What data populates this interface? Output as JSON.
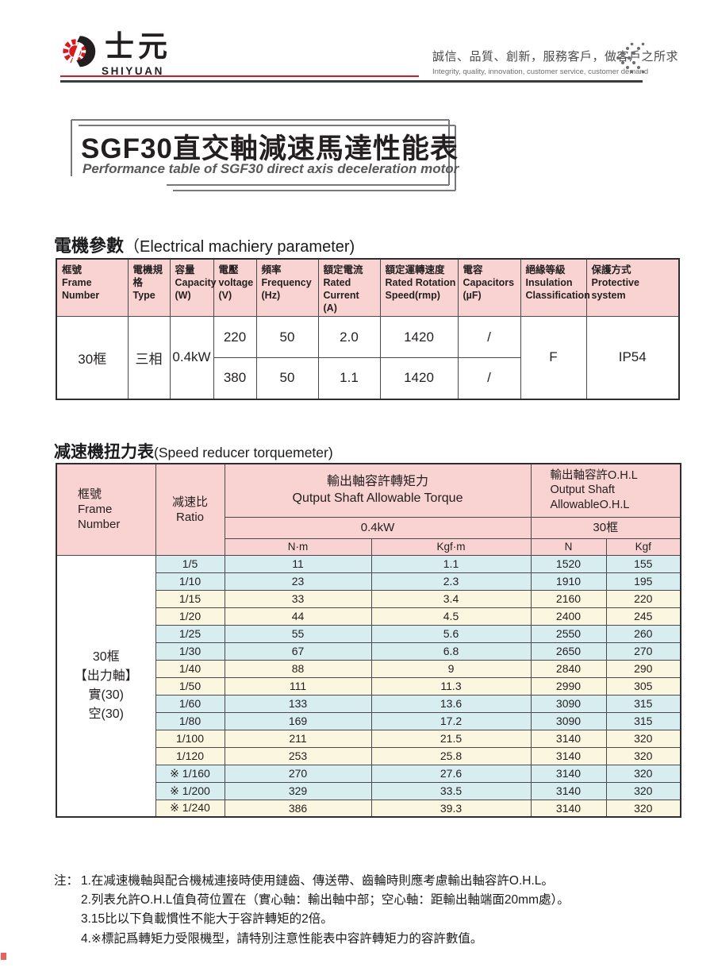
{
  "colors": {
    "accent_red": "#d71920",
    "header_pink": "#f8d3d1",
    "cell_blue": "#d7edf0",
    "cell_yellow": "#faf6df",
    "rule_dark": "#3b3b3d"
  },
  "header": {
    "logo_cn": "士元",
    "logo_en": "SHIYUAN",
    "slogan_cn": "誠信、品質、創新，服務客戶，做客戶之所求",
    "slogan_en": "Integrity, quality, innovation, customer service, customer demand"
  },
  "title": {
    "main": "SGF30直交軸減速馬達性能表",
    "subtitle": "Performance table of SGF30 direct axis deceleration motor"
  },
  "motor": {
    "heading_cn": "電機參數",
    "heading_en": "（Electrical machiery parameter)",
    "columns": [
      "框號\nFrame\nNumber",
      "電機規格\nType",
      "容量\nCapacity\n(W)",
      "電壓\nvoltage\n(V)",
      "頻率\nFrequency\n(Hz)",
      "額定電流\nRated\nCurrent\n(A)",
      "額定運轉速度\nRated Rotation\nSpeed(rmp)",
      "電容\nCapacitors\n(µF)",
      "絕緣等級\nInsulation\nClassification",
      "保護方式\nProtective\nsystem"
    ],
    "frame": "30框",
    "type": "三相",
    "capacity": "0.4kW",
    "rows": [
      {
        "voltage": "220",
        "frequency": "50",
        "current": "2.0",
        "speed": "1420",
        "capacitors": "/"
      },
      {
        "voltage": "380",
        "frequency": "50",
        "current": "1.1",
        "speed": "1420",
        "capacitors": "/"
      }
    ],
    "insulation": "F",
    "protection": "IP54"
  },
  "torque": {
    "heading_cn": "减速機扭力表",
    "heading_en": "(Speed reducer torquemeter)",
    "frame_header": "框號\nFrame\nNumber",
    "ratio_header": "减速比\nRatio",
    "torque_header": "輸出軸容許轉矩力\nQutput Shaft Allowable Torque",
    "ohl_header": "輸出軸容許O.H.L\nOutput Shaft\nAllowableO.H.L",
    "power_header": "0.4kW",
    "frame30_header": "30框",
    "units": [
      "N·m",
      "Kgf·m",
      "N",
      "Kgf"
    ],
    "frame_cell": "30框\n【出力軸】\n實(30)\n空(30)",
    "rows": [
      {
        "ratio": "1/5",
        "nm": "11",
        "kgfm": "1.1",
        "n": "1520",
        "kgf": "155",
        "tone": "blue"
      },
      {
        "ratio": "1/10",
        "nm": "23",
        "kgfm": "2.3",
        "n": "1910",
        "kgf": "195",
        "tone": "blue"
      },
      {
        "ratio": "1/15",
        "nm": "33",
        "kgfm": "3.4",
        "n": "2160",
        "kgf": "220",
        "tone": "yellow"
      },
      {
        "ratio": "1/20",
        "nm": "44",
        "kgfm": "4.5",
        "n": "2400",
        "kgf": "245",
        "tone": "yellow"
      },
      {
        "ratio": "1/25",
        "nm": "55",
        "kgfm": "5.6",
        "n": "2550",
        "kgf": "260",
        "tone": "blue"
      },
      {
        "ratio": "1/30",
        "nm": "67",
        "kgfm": "6.8",
        "n": "2650",
        "kgf": "270",
        "tone": "blue"
      },
      {
        "ratio": "1/40",
        "nm": "88",
        "kgfm": "9",
        "n": "2840",
        "kgf": "290",
        "tone": "yellow"
      },
      {
        "ratio": "1/50",
        "nm": "111",
        "kgfm": "11.3",
        "n": "2990",
        "kgf": "305",
        "tone": "yellow"
      },
      {
        "ratio": "1/60",
        "nm": "133",
        "kgfm": "13.6",
        "n": "3090",
        "kgf": "315",
        "tone": "blue"
      },
      {
        "ratio": "1/80",
        "nm": "169",
        "kgfm": "17.2",
        "n": "3090",
        "kgf": "315",
        "tone": "blue"
      },
      {
        "ratio": "1/100",
        "nm": "211",
        "kgfm": "21.5",
        "n": "3140",
        "kgf": "320",
        "tone": "yellow"
      },
      {
        "ratio": "1/120",
        "nm": "253",
        "kgfm": "25.8",
        "n": "3140",
        "kgf": "320",
        "tone": "yellow"
      },
      {
        "ratio": "※ 1/160",
        "nm": "270",
        "kgfm": "27.6",
        "n": "3140",
        "kgf": "320",
        "tone": "blue"
      },
      {
        "ratio": "※ 1/200",
        "nm": "329",
        "kgfm": "33.5",
        "n": "3140",
        "kgf": "320",
        "tone": "blue"
      },
      {
        "ratio": "※ 1/240",
        "nm": "386",
        "kgfm": "39.3",
        "n": "3140",
        "kgf": "320",
        "tone": "yellow"
      }
    ]
  },
  "notes": {
    "label": "注：",
    "items": [
      "1.在减速機軸與配合機械連接時使用鏈齒、傳送帶、齒輪時則應考慮輸出軸容許O.H.L。",
      "2.列表允許O.H.L值負荷位置在（實心軸：輸出軸中部；空心軸：距輸出軸端面20mm處）。",
      "3.15比以下負載慣性不能大于容許轉矩的2倍。",
      "4.※標記爲轉矩力受限機型，請特別注意性能表中容許轉矩力的容許數值。"
    ]
  }
}
